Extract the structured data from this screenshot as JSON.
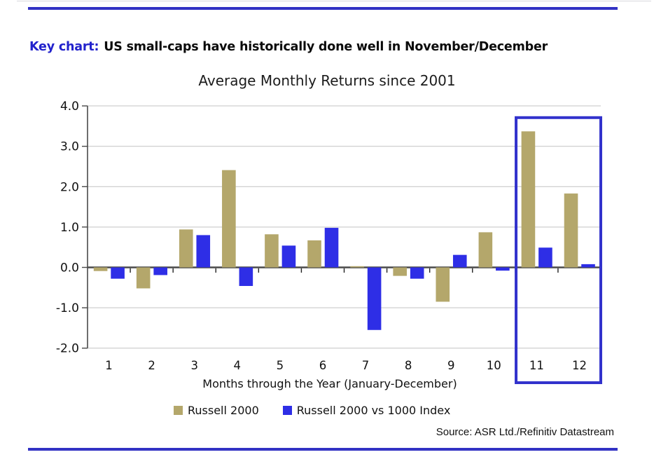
{
  "header": {
    "prefix": "Key chart:",
    "title": "US small-caps have historically done well in November/December"
  },
  "footer": {
    "source": "Source: ASR Ltd./Refinitiv Datastream"
  },
  "colors": {
    "accent_rule_blue": "#3232c4",
    "heading_blue": "#2222cc",
    "highlight_box_blue": "#3232cc",
    "gridline_gray": "#c9c9c9",
    "axis_gray": "#4a4a4a",
    "text_dark": "#111111"
  },
  "chart_data": {
    "type": "bar",
    "title": "Average Monthly Returns since 2001",
    "xlabel": "Months through the Year (January-December)",
    "ylabel": "",
    "categories": [
      "1",
      "2",
      "3",
      "4",
      "5",
      "6",
      "7",
      "8",
      "9",
      "10",
      "11",
      "12"
    ],
    "series": [
      {
        "name": "Russell 2000",
        "color": "#b4a76b",
        "values": [
          -0.09,
          -0.52,
          0.94,
          2.41,
          0.82,
          0.67,
          0.03,
          -0.21,
          -0.85,
          0.87,
          3.37,
          1.83
        ]
      },
      {
        "name": "Russell 2000 vs 1000 Index",
        "color": "#2e2ee6",
        "values": [
          -0.28,
          -0.19,
          0.8,
          -0.46,
          0.54,
          0.98,
          -1.55,
          -0.28,
          0.31,
          -0.08,
          0.49,
          0.08
        ]
      }
    ],
    "ylim": [
      -2.0,
      4.0
    ],
    "yticks": [
      4.0,
      3.0,
      2.0,
      1.0,
      0.0,
      -1.0,
      -2.0
    ],
    "grid": true,
    "legend_position": "bottom",
    "highlight": {
      "from_month": 11,
      "to_month": 12,
      "top_value": 3.71,
      "color": "#3232cc"
    }
  }
}
